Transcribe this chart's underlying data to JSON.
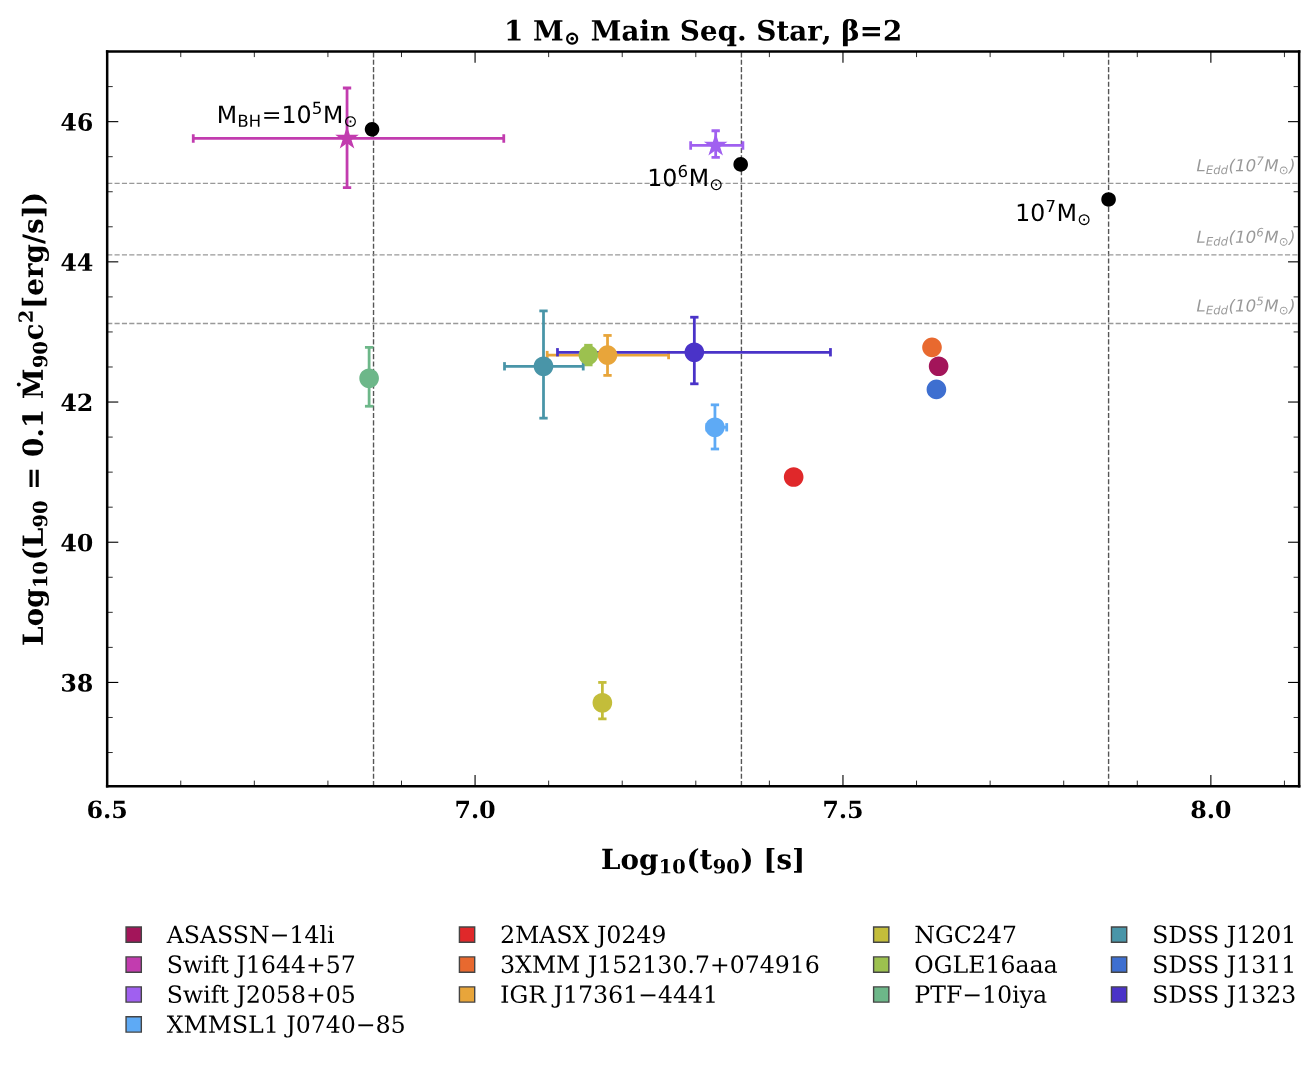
{
  "chart_data": {
    "type": "scatter",
    "title": "1 M$_{⊙}$ Main Seq. Star, β=2",
    "xlabel": "Log$_{10}$(t$_{90}$) [s]",
    "ylabel": "Log$_{10}$(L$_{90}$ = 0.1 Ṁ$_{90}$c$^{2}$[erg/s])",
    "xlim": [
      6.5,
      8.12
    ],
    "ylim": [
      36.52,
      47.0
    ],
    "xticks": [
      6.5,
      {
        "value": 7,
        "label": "7.0"
      },
      7.5,
      {
        "value": 8,
        "label": "8.0"
      }
    ],
    "yticks": [
      38,
      40,
      42,
      44,
      46
    ],
    "grid": false,
    "legend": "bottom",
    "marker": "circle",
    "series": [
      {
        "name": "ASASSN−14li",
        "color": "#a3155a",
        "x": [
          7.63
        ],
        "values": [
          42.51
        ]
      },
      {
        "name": "Swift J1644+57",
        "color": "#c23caf",
        "marker": "star",
        "x": [
          6.826
        ],
        "values": [
          45.76
        ],
        "errors": [
          [
            45.06,
            46.48
          ]
        ],
        "xerrors": [
          [
            6.617,
            7.039
          ]
        ]
      },
      {
        "name": "Swift J2058+05",
        "color": "#a060f0",
        "marker": "star",
        "x": [
          7.327
        ],
        "values": [
          45.66
        ],
        "errors": [
          [
            45.49,
            45.87
          ]
        ],
        "xerrors": [
          [
            7.293,
            7.364
          ]
        ]
      },
      {
        "name": "XMMSL1 J0740−85",
        "color": "#5eaaf5",
        "x": [
          7.326
        ],
        "values": [
          41.64
        ],
        "errors": [
          [
            41.33,
            41.96
          ]
        ],
        "xerrors": [
          [
            7.315,
            7.342
          ]
        ]
      },
      {
        "name": "2MASX J0249",
        "color": "#e0282a",
        "x": [
          7.433
        ],
        "values": [
          40.93
        ]
      },
      {
        "name": "3XMM J152130.7+074916",
        "color": "#e8692f",
        "x": [
          7.621
        ],
        "values": [
          42.78
        ]
      },
      {
        "name": "IGR J17361−4441",
        "color": "#e8a53a",
        "x": [
          7.18
        ],
        "values": [
          42.67
        ],
        "errors": [
          [
            42.38,
            42.95
          ]
        ],
        "xerrors": [
          [
            7.098,
            7.263
          ]
        ]
      },
      {
        "name": "NGC247",
        "color": "#c3bd3a",
        "x": [
          7.173
        ],
        "values": [
          37.71
        ],
        "errors": [
          [
            37.48,
            38.0
          ]
        ]
      },
      {
        "name": "OGLE16aaa",
        "color": "#9cc14f",
        "x": [
          7.154
        ],
        "values": [
          42.67
        ],
        "errors": [
          [
            42.53,
            42.81
          ]
        ]
      },
      {
        "name": "PTF−10iya",
        "color": "#6db789",
        "x": [
          6.856
        ],
        "values": [
          42.34
        ],
        "errors": [
          [
            41.94,
            42.78
          ]
        ]
      },
      {
        "name": "SDSS J1201",
        "color": "#4995a8",
        "x": [
          7.093
        ],
        "values": [
          42.51
        ],
        "errors": [
          [
            41.77,
            43.3
          ]
        ],
        "xerrors": [
          [
            7.04,
            7.147
          ]
        ]
      },
      {
        "name": "SDSS J1311",
        "color": "#3e6fd0",
        "x": [
          7.627
        ],
        "values": [
          42.18
        ]
      },
      {
        "name": "SDSS J1323",
        "color": "#4a33c8",
        "x": [
          7.298
        ],
        "values": [
          42.71
        ],
        "errors": [
          [
            42.26,
            43.21
          ]
        ],
        "xerrors": [
          [
            7.112,
            7.483
          ]
        ]
      },
      {
        "color": "#000000",
        "x": [
          6.86,
          7.361,
          7.861
        ],
        "values": [
          45.89,
          45.39,
          44.89
        ]
      }
    ],
    "annotations": [
      {
        "text": "M$_{BH}$=10$^{5}$M$_{⊙}$",
        "x": 6.86,
        "y": 45.89
      },
      {
        "text": "10$^{6}$M$_{⊙}$",
        "x": 7.361,
        "y": 45.39
      },
      {
        "text": "10$^{7}$M$_{⊙}$",
        "x": 7.861,
        "y": 44.89
      }
    ],
    "ref_lines": [
      {
        "axis": "x",
        "value": 6.862,
        "color": "#555555",
        "line_style": "dashed"
      },
      {
        "axis": "x",
        "value": 7.362,
        "color": "#555555",
        "line_style": "dashed"
      },
      {
        "axis": "x",
        "value": 7.861,
        "color": "#555555",
        "line_style": "dashed"
      },
      {
        "axis": "y",
        "value": 45.12,
        "label": "L$_{Edd}$(10$^{7}$M$_{⊙}$)",
        "color": "#999999",
        "line_style": "dashed"
      },
      {
        "axis": "y",
        "value": 44.1,
        "label": "L$_{Edd}$(10$^{6}$M$_{⊙}$)",
        "color": "#999999",
        "line_style": "dashed"
      },
      {
        "axis": "y",
        "value": 43.12,
        "label": "L$_{Edd}$(10$^{5}$M$_{⊙}$)",
        "color": "#999999",
        "line_style": "dashed"
      }
    ]
  }
}
